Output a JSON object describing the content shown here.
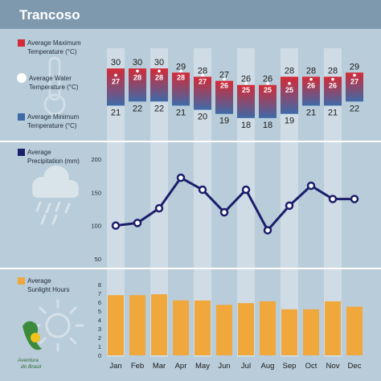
{
  "title": "Trancoso",
  "legend": {
    "max_temp": [
      "Average Maximum",
      "Temperature (°C)"
    ],
    "water_temp": [
      "Average Water",
      "Temperature (°C)"
    ],
    "min_temp": [
      "Average Minimum",
      "Temperature (°C)"
    ],
    "precipitation": [
      "Average",
      "Precipitation (mm)"
    ],
    "sunlight": [
      "Average",
      "Sunlight Hours"
    ]
  },
  "logo": {
    "line1": "Aventura",
    "line2": "do Brasil"
  },
  "colors": {
    "background": "#b9ccd9",
    "title_band": "#7e99ae",
    "column": "#cfdce6",
    "max_temp": "#d42a37",
    "min_temp": "#3e6aa8",
    "precip_line": "#1b1e6b",
    "sun_bar": "#f0a73b",
    "separator": "#ffffff"
  },
  "chart_data": [
    {
      "type": "bar",
      "name": "temperature",
      "categories": [
        "Jan",
        "Feb",
        "Mar",
        "Apr",
        "May",
        "Jun",
        "Jul",
        "Aug",
        "Sep",
        "Oct",
        "Nov",
        "Dec"
      ],
      "series": [
        {
          "name": "Average Maximum Temperature (°C)",
          "values": [
            30,
            30,
            30,
            29,
            28,
            27,
            26,
            26,
            28,
            28,
            28,
            29
          ]
        },
        {
          "name": "Average Water Temperature (°C)",
          "values": [
            27,
            28,
            28,
            28,
            27,
            26,
            25,
            25,
            25,
            26,
            26,
            27
          ]
        },
        {
          "name": "Average Minimum Temperature (°C)",
          "values": [
            21,
            22,
            22,
            21,
            20,
            19,
            18,
            18,
            19,
            21,
            21,
            22
          ]
        }
      ]
    },
    {
      "type": "line",
      "name": "precipitation",
      "categories": [
        "Jan",
        "Feb",
        "Mar",
        "Apr",
        "May",
        "Jun",
        "Jul",
        "Aug",
        "Sep",
        "Oct",
        "Nov",
        "Dec"
      ],
      "values": [
        100,
        104,
        126,
        172,
        154,
        120,
        154,
        93,
        130,
        160,
        140,
        140
      ],
      "yticks": [
        50,
        100,
        150,
        200
      ],
      "ylim": [
        50,
        200
      ]
    },
    {
      "type": "bar",
      "name": "sunlight",
      "categories": [
        "Jan",
        "Feb",
        "Mar",
        "Apr",
        "May",
        "Jun",
        "Jul",
        "Aug",
        "Sep",
        "Oct",
        "Nov",
        "Dec"
      ],
      "values": [
        6.8,
        6.8,
        6.9,
        6.2,
        6.2,
        5.7,
        5.9,
        6.1,
        5.2,
        5.2,
        6.1,
        5.5
      ],
      "yticks": [
        0,
        1,
        2,
        3,
        4,
        5,
        6,
        7,
        8
      ],
      "ylim": [
        0,
        8
      ]
    }
  ]
}
